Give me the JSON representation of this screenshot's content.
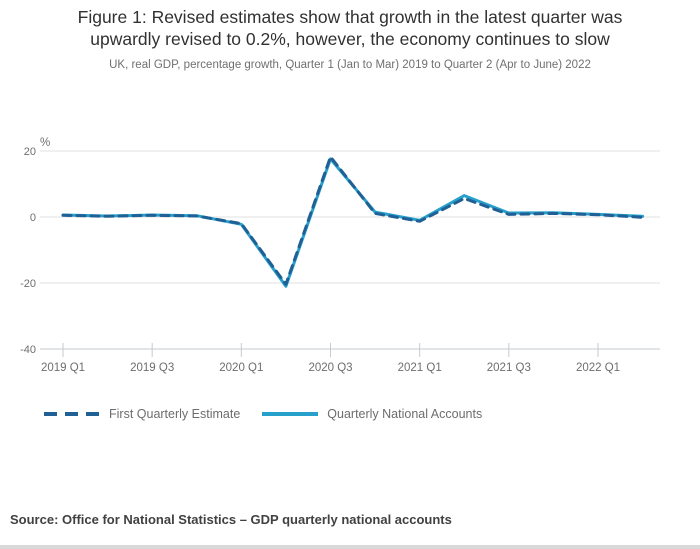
{
  "header": {
    "title_line1": "Figure 1: Revised estimates show that growth in the latest quarter was",
    "title_line2": "upwardly revised to 0.2%, however, the economy continues to slow",
    "subtitle": "UK, real GDP, percentage growth, Quarter 1 (Jan to Mar) 2019 to Quarter 2 (Apr to June) 2022"
  },
  "chart_data": {
    "type": "line",
    "title": "Figure 1: Revised estimates show that growth in the latest quarter was upwardly revised to 0.2%, however, the economy continues to slow",
    "subtitle": "UK, real GDP, percentage growth, Quarter 1 (Jan to Mar) 2019 to Quarter 2 (Apr to June) 2022",
    "unit_label": "%",
    "categories": [
      "2019 Q1",
      "2019 Q2",
      "2019 Q3",
      "2019 Q4",
      "2020 Q1",
      "2020 Q2",
      "2020 Q3",
      "2020 Q4",
      "2021 Q1",
      "2021 Q2",
      "2021 Q3",
      "2021 Q4",
      "2022 Q1",
      "2022 Q2"
    ],
    "x_tick_labels": [
      "2019 Q1",
      "2019 Q3",
      "2020 Q1",
      "2020 Q3",
      "2021 Q1",
      "2021 Q3",
      "2022 Q1"
    ],
    "x_tick_indices": [
      0,
      2,
      4,
      6,
      8,
      10,
      12
    ],
    "y_ticks": [
      20,
      0,
      -20,
      -40
    ],
    "ylim": [
      -40,
      25
    ],
    "grid": "horizontal",
    "legend_position": "bottom",
    "series": [
      {
        "name": "Quarterly National Accounts",
        "style": "solid",
        "color": "#27a0cc",
        "values": [
          0.6,
          0.3,
          0.6,
          0.4,
          -2.2,
          -21.0,
          17.6,
          1.5,
          -1.0,
          6.5,
          1.2,
          1.3,
          0.8,
          0.2
        ]
      },
      {
        "name": "First Quarterly Estimate",
        "style": "dashed",
        "color": "#206095",
        "values": [
          0.5,
          0.2,
          0.5,
          0.3,
          -2.0,
          -20.4,
          18.2,
          1.1,
          -1.3,
          5.6,
          0.8,
          1.1,
          0.7,
          -0.1
        ]
      }
    ]
  },
  "legend": {
    "dashed_label": "First Quarterly Estimate",
    "solid_label": "Quarterly National Accounts"
  },
  "source": {
    "text": "Source: Office for National Statistics – GDP quarterly national accounts"
  },
  "colors": {
    "solid_series": "#27a0cc",
    "dashed_series": "#206095",
    "gridline": "#e2e2e2",
    "axis_line": "#c5cbd1",
    "axis_text": "#6e6e6f",
    "title_text": "#323132",
    "subtitle_text": "#707071",
    "source_text": "#414042"
  }
}
